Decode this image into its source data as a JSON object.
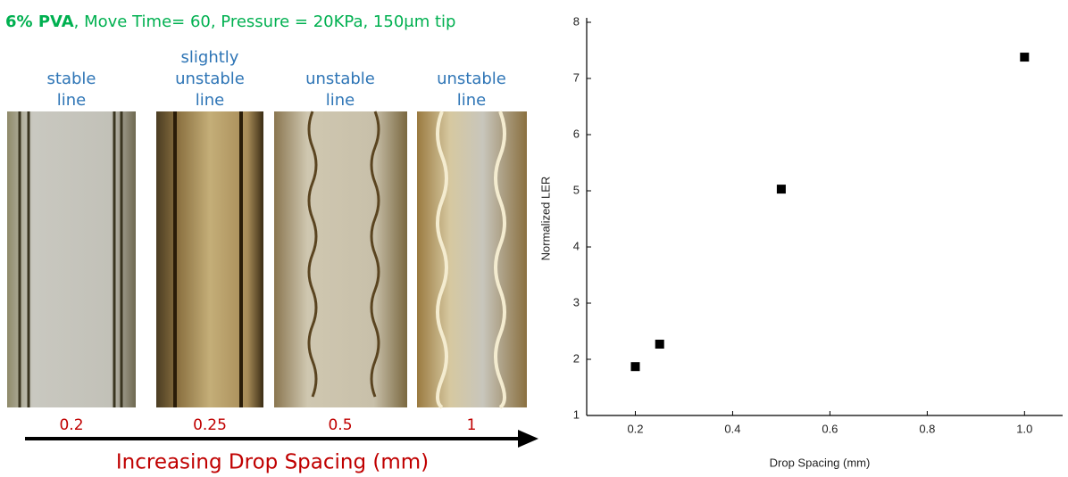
{
  "header": {
    "title_bold": "6% PVA",
    "title_rest": ", Move Time= 60, Pressure = 20KPa, 150μm tip"
  },
  "images": [
    {
      "label": [
        "stable",
        "line"
      ],
      "spacing": "0.2"
    },
    {
      "label": [
        "slightly",
        "unstable",
        "line"
      ],
      "spacing": "0.25"
    },
    {
      "label": [
        "unstable",
        "line"
      ],
      "spacing": "0.5"
    },
    {
      "label": [
        "unstable",
        "line"
      ],
      "spacing": "1"
    }
  ],
  "arrow_label": "Increasing Drop Spacing (mm)",
  "chart_data": {
    "type": "scatter",
    "x_label": "Drop Spacing (mm)",
    "y_label": "Normalized LER",
    "x": [
      0.2,
      0.25,
      0.5,
      1.0
    ],
    "values": [
      1.87,
      2.27,
      5.03,
      7.38
    ],
    "color": "#000000",
    "xlim": [
      0.1,
      1.06
    ],
    "ylim": [
      1,
      8
    ],
    "xticks": [
      0.2,
      0.4,
      0.6,
      0.8,
      {
        "value": 1.0,
        "label": "1.0"
      }
    ],
    "yticks": [
      1,
      2,
      3,
      4,
      5,
      6,
      7,
      8
    ]
  }
}
